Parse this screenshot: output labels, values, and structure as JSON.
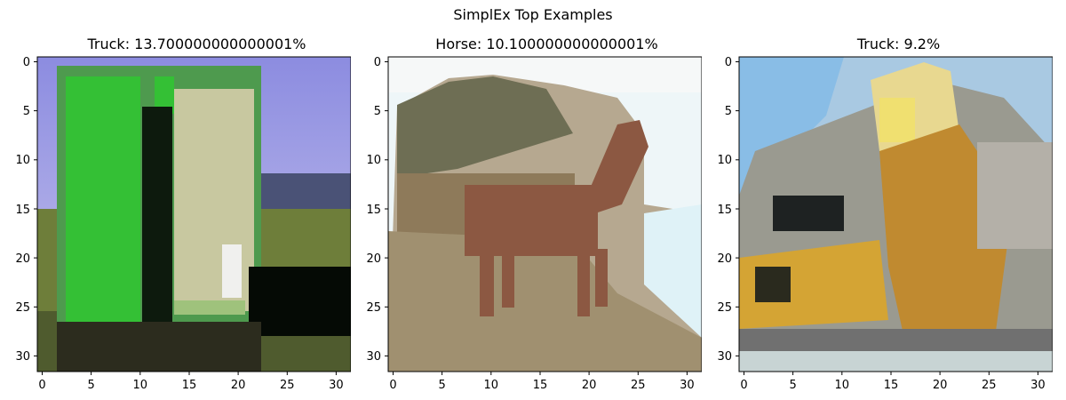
{
  "figure": {
    "title": "SimplEx Top Examples"
  },
  "panels": [
    {
      "title": "Truck: 13.700000000000001%",
      "subject": "truck",
      "x_ticks": [
        "0",
        "5",
        "10",
        "15",
        "20",
        "25",
        "30"
      ],
      "y_ticks": [
        "0",
        "5",
        "10",
        "15",
        "20",
        "25",
        "30"
      ]
    },
    {
      "title": "Horse: 10.100000000000001%",
      "subject": "horse",
      "x_ticks": [
        "0",
        "5",
        "10",
        "15",
        "20",
        "25",
        "30"
      ],
      "y_ticks": [
        "0",
        "5",
        "10",
        "15",
        "20",
        "25",
        "30"
      ]
    },
    {
      "title": "Truck: 9.2%",
      "subject": "truck",
      "x_ticks": [
        "0",
        "5",
        "10",
        "15",
        "20",
        "25",
        "30"
      ],
      "y_ticks": [
        "0",
        "5",
        "10",
        "15",
        "20",
        "25",
        "30"
      ]
    }
  ],
  "colors": {
    "truck1_sky": "#9a9ae6",
    "truck1_green": "#33c033",
    "truck1_grass": "#6e7e3a",
    "horse_body": "#8e5a44",
    "horse_sky": "#e6f4f8",
    "truck3_yellow": "#d6a430",
    "truck3_gray": "#9a9a90"
  }
}
